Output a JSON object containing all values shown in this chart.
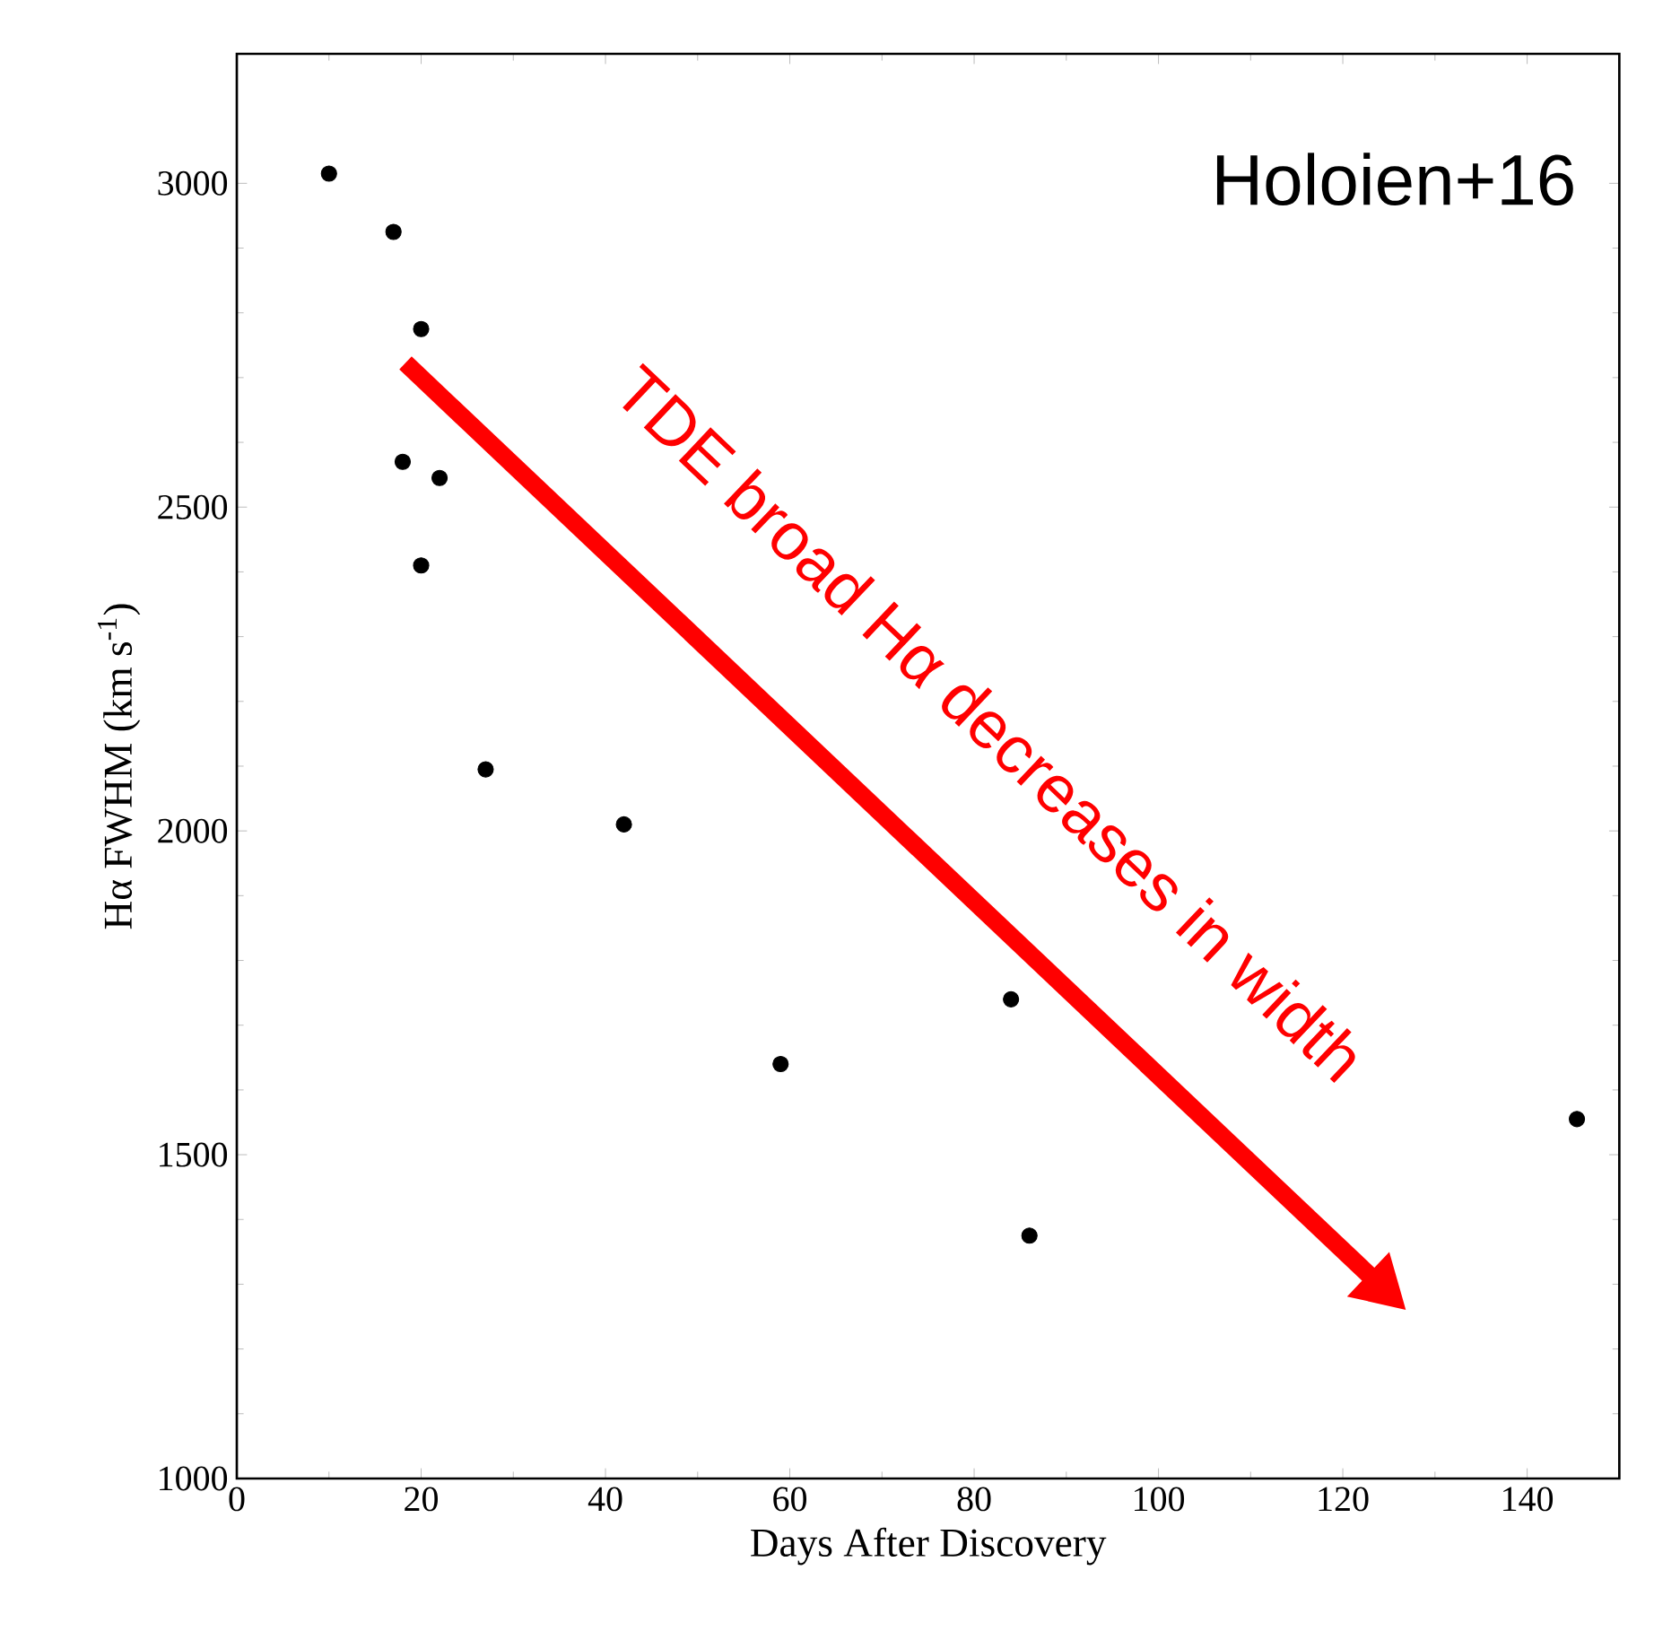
{
  "chart_data": {
    "type": "scatter",
    "xlabel": "Days After Discovery",
    "ylabel": "Hα FWHM (km s$^{-1}$)",
    "x": [
      10,
      17,
      20,
      18,
      22,
      20,
      27,
      42,
      59,
      84,
      86,
      145.4
    ],
    "series": [
      {
        "color": "#000000",
        "values": [
          3015,
          2925,
          2775,
          2570,
          2545,
          2410,
          2095,
          2010,
          1640,
          1740,
          1375,
          1555
        ]
      }
    ],
    "xlim": [
      0,
      150
    ],
    "xticks": [
      0,
      20,
      40,
      60,
      80,
      100,
      120,
      140
    ],
    "ylim": [
      1000,
      3200
    ],
    "yticks": [
      1000,
      1500,
      2000,
      2500,
      3000
    ],
    "marker": "circle",
    "grid": false,
    "annotations": [
      "Holoien+16",
      "TDE broad Hα decreases in width"
    ]
  }
}
